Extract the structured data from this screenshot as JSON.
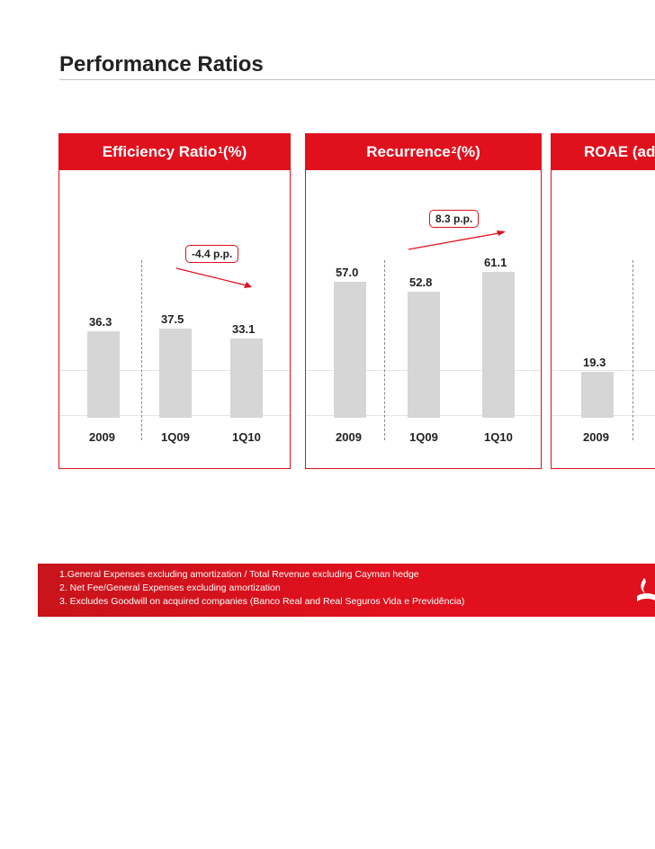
{
  "page": {
    "title": "Performance Ratios"
  },
  "chart_data": [
    {
      "type": "bar",
      "title": "Efficiency Ratio",
      "title_sup": "1",
      "title_suffix": " (%)",
      "categories": [
        "2009",
        "1Q09",
        "1Q10"
      ],
      "values": [
        36.3,
        37.5,
        33.1
      ],
      "value_labels": [
        "36.3",
        "37.5",
        "33.1"
      ],
      "annotation": "-4.4 p.p."
    },
    {
      "type": "bar",
      "title": "Recurrence",
      "title_sup": "2",
      "title_suffix": " (%)",
      "categories": [
        "2009",
        "1Q09",
        "1Q10"
      ],
      "values": [
        57.0,
        52.8,
        61.1
      ],
      "value_labels": [
        "57.0",
        "52.8",
        "61.1"
      ],
      "annotation": "8.3 p.p."
    },
    {
      "type": "bar",
      "title": "ROAE (ad",
      "title_sup": "",
      "title_suffix": "",
      "categories": [
        "2009"
      ],
      "values": [
        19.3
      ],
      "value_labels": [
        "19.3"
      ],
      "annotation": ""
    }
  ],
  "footer": {
    "notes": [
      "1.General Expenses excluding amortization / Total Revenue excluding Cayman hedge",
      "2. Net Fee/General Expenses excluding amortization",
      "3. Excludes Goodwill on acquired companies (Banco Real and Real Seguros Vida e Previdência)"
    ]
  },
  "colors": {
    "brand_red": "#e0101d",
    "bar_gray": "#d6d6d6"
  },
  "icons": {
    "logo": "santander-flame-icon"
  }
}
